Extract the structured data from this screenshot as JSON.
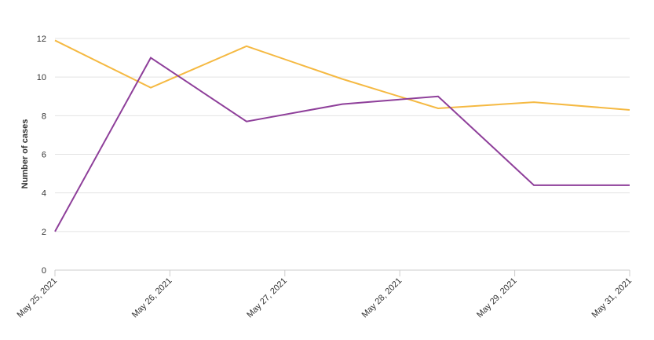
{
  "chart_data": {
    "type": "line",
    "y_label": "Number of cases",
    "x": [
      "2021-05-25",
      "2021-05-26",
      "2021-05-27",
      "2021-05-28",
      "2021-05-29",
      "2021-05-30",
      "2021-05-31"
    ],
    "series": [
      {
        "color": "#f5b942",
        "values": [
          11.9,
          9.45,
          11.6,
          9.9,
          8.38,
          8.7,
          8.3
        ]
      },
      {
        "color": "#8e3f9a",
        "values": [
          2.0,
          11.0,
          7.7,
          8.6,
          9.0,
          4.4,
          4.4
        ]
      }
    ],
    "xlim": [
      "2021-05-25T00:00",
      "2021-05-31T00:00"
    ],
    "xticks": [
      {
        "value": "2021-05-25T00:00",
        "label": "May 25, 2021"
      },
      {
        "value": "2021-05-26T04:48",
        "label": "May 26, 2021"
      },
      {
        "value": "2021-05-27T09:36",
        "label": "May 27, 2021"
      },
      {
        "value": "2021-05-28T14:24",
        "label": "May 28, 2021"
      },
      {
        "value": "2021-05-29T19:12",
        "label": "May 29, 2021"
      },
      {
        "value": "2021-05-31T00:00",
        "label": "May 31, 2021"
      }
    ],
    "ylim": [
      0,
      12
    ],
    "yticks": [
      0,
      2,
      4,
      6,
      8,
      10,
      12
    ],
    "grid": true
  }
}
